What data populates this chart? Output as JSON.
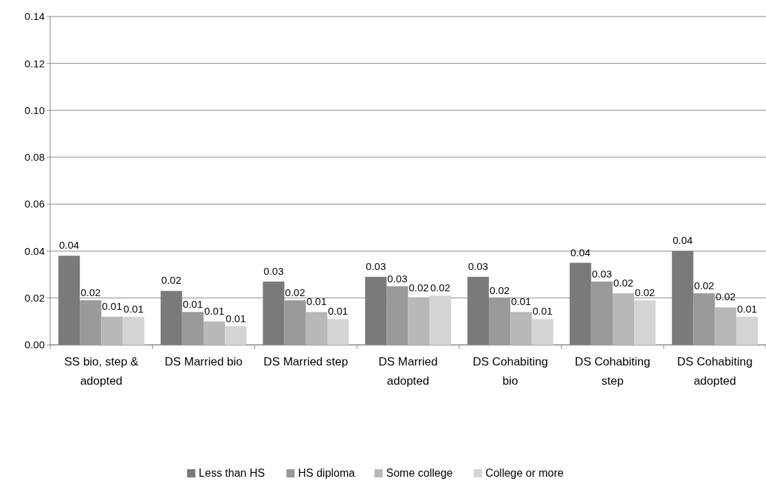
{
  "chart_data": {
    "type": "bar",
    "categories": [
      "SS bio, step & adopted",
      "DS Married bio",
      "DS Married step",
      "DS Married adopted",
      "DS Cohabiting bio",
      "DS Cohabiting step",
      "DS Cohabiting adopted"
    ],
    "series": [
      {
        "name": "Less than HS",
        "color": "#7a7a7a",
        "values": [
          0.038,
          0.023,
          0.027,
          0.029,
          0.029,
          0.035,
          0.04
        ],
        "value_labels": [
          "0.04",
          "0.02",
          "0.03",
          "0.03",
          "0.03",
          "0.04",
          "0.04"
        ]
      },
      {
        "name": "HS diploma",
        "color": "#9a9a9a",
        "values": [
          0.019,
          0.014,
          0.019,
          0.025,
          0.02,
          0.027,
          0.022
        ],
        "value_labels": [
          "0.02",
          "0.01",
          "0.02",
          "0.03",
          "0.02",
          "0.03",
          "0.02"
        ]
      },
      {
        "name": "Some college",
        "color": "#b8b8b8",
        "values": [
          0.012,
          0.01,
          0.014,
          0.02,
          0.014,
          0.022,
          0.016
        ],
        "value_labels": [
          "0.01",
          "0.01",
          "0.01",
          "0.02",
          "0.01",
          "0.02",
          "0.02"
        ]
      },
      {
        "name": "College or more",
        "color": "#d4d4d4",
        "values": [
          0.012,
          0.008,
          0.011,
          0.021,
          0.011,
          0.019,
          0.012
        ],
        "value_labels": [
          "0.01",
          "0.01",
          "0.01",
          "0.02",
          "0.01",
          "0.02",
          "0.01"
        ]
      }
    ],
    "ylim": [
      0,
      0.14
    ],
    "yticks": [
      {
        "value": 0,
        "label": "0.00"
      },
      {
        "value": 0.02,
        "label": "0.02"
      },
      {
        "value": 0.04,
        "label": "0.04"
      },
      {
        "value": 0.06,
        "label": "0.06"
      },
      {
        "value": 0.08,
        "label": "0.08"
      },
      {
        "value": 0.1,
        "label": "0.10"
      },
      {
        "value": 0.12,
        "label": "0.12"
      },
      {
        "value": 0.14,
        "label": "0.14"
      }
    ],
    "grid": "y",
    "legend": "bottom"
  }
}
